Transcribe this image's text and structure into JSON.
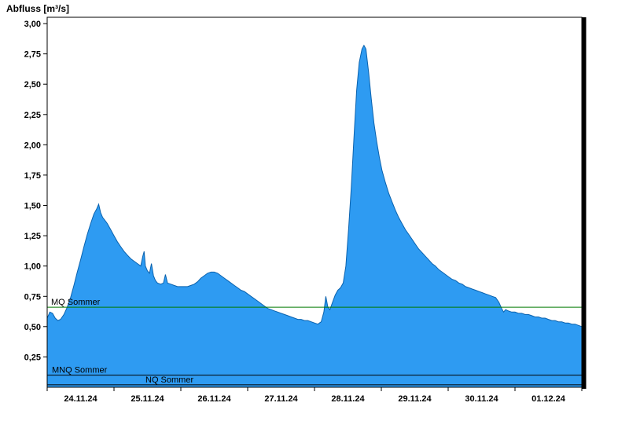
{
  "page": {
    "title": "Abfluss [m³/s]"
  },
  "colors": {
    "background": "#FFFFFF",
    "area_fill": "#2E9BF2",
    "area_stroke": "#0A62AE",
    "axis": "#000000",
    "text": "#000000",
    "mq_color": "#007A00",
    "ref_color": "#000000"
  },
  "chart_data": {
    "type": "area",
    "title": "Abfluss [m³/s]",
    "ylabel": "Abfluss [m³/s]",
    "ylim": [
      0,
      3.0
    ],
    "ytick_step": 0.25,
    "grid": false,
    "legend_position": "none",
    "x_axis": {
      "unit": "date",
      "days_shown": 8,
      "labels": [
        "24.11.24",
        "25.11.24",
        "26.11.24",
        "27.11.24",
        "28.11.24",
        "29.11.24",
        "30.11.24",
        "01.12.24"
      ]
    },
    "reference_lines": [
      {
        "label": "MQ Sommer",
        "value": 0.66,
        "color": "#007A00"
      },
      {
        "label": "MNQ Sommer",
        "value": 0.1,
        "color": "#000000"
      },
      {
        "label": "NQ Sommer",
        "value": 0.02,
        "color": "#000000"
      }
    ],
    "series": [
      {
        "name": "Abfluss",
        "points": [
          [
            0,
            0.57
          ],
          [
            0.04,
            0.62
          ],
          [
            0.08,
            0.61
          ],
          [
            0.12,
            0.57
          ],
          [
            0.16,
            0.55
          ],
          [
            0.2,
            0.56
          ],
          [
            0.25,
            0.6
          ],
          [
            0.3,
            0.66
          ],
          [
            0.35,
            0.74
          ],
          [
            0.4,
            0.84
          ],
          [
            0.45,
            0.95
          ],
          [
            0.5,
            1.05
          ],
          [
            0.55,
            1.16
          ],
          [
            0.6,
            1.26
          ],
          [
            0.65,
            1.35
          ],
          [
            0.7,
            1.43
          ],
          [
            0.74,
            1.47
          ],
          [
            0.77,
            1.51
          ],
          [
            0.8,
            1.44
          ],
          [
            0.83,
            1.4
          ],
          [
            0.86,
            1.38
          ],
          [
            0.9,
            1.35
          ],
          [
            0.95,
            1.3
          ],
          [
            1,
            1.25
          ],
          [
            1.05,
            1.2
          ],
          [
            1.1,
            1.16
          ],
          [
            1.15,
            1.12
          ],
          [
            1.2,
            1.09
          ],
          [
            1.25,
            1.06
          ],
          [
            1.3,
            1.04
          ],
          [
            1.35,
            1.02
          ],
          [
            1.4,
            1
          ],
          [
            1.43,
            1.08
          ],
          [
            1.45,
            1.12
          ],
          [
            1.47,
            1
          ],
          [
            1.5,
            0.96
          ],
          [
            1.53,
            0.94
          ],
          [
            1.56,
            1.02
          ],
          [
            1.59,
            0.92
          ],
          [
            1.62,
            0.88
          ],
          [
            1.65,
            0.86
          ],
          [
            1.7,
            0.85
          ],
          [
            1.74,
            0.86
          ],
          [
            1.77,
            0.93
          ],
          [
            1.8,
            0.86
          ],
          [
            1.85,
            0.85
          ],
          [
            1.9,
            0.84
          ],
          [
            1.95,
            0.83
          ],
          [
            2,
            0.83
          ],
          [
            2.1,
            0.83
          ],
          [
            2.15,
            0.84
          ],
          [
            2.2,
            0.85
          ],
          [
            2.25,
            0.87
          ],
          [
            2.3,
            0.9
          ],
          [
            2.35,
            0.92
          ],
          [
            2.4,
            0.94
          ],
          [
            2.45,
            0.95
          ],
          [
            2.5,
            0.95
          ],
          [
            2.55,
            0.94
          ],
          [
            2.6,
            0.92
          ],
          [
            2.65,
            0.9
          ],
          [
            2.7,
            0.88
          ],
          [
            2.75,
            0.86
          ],
          [
            2.8,
            0.84
          ],
          [
            2.85,
            0.82
          ],
          [
            2.9,
            0.8
          ],
          [
            2.95,
            0.79
          ],
          [
            3,
            0.77
          ],
          [
            3.05,
            0.75
          ],
          [
            3.1,
            0.73
          ],
          [
            3.15,
            0.71
          ],
          [
            3.2,
            0.69
          ],
          [
            3.25,
            0.67
          ],
          [
            3.3,
            0.65
          ],
          [
            3.35,
            0.64
          ],
          [
            3.4,
            0.63
          ],
          [
            3.45,
            0.62
          ],
          [
            3.5,
            0.61
          ],
          [
            3.55,
            0.6
          ],
          [
            3.6,
            0.59
          ],
          [
            3.65,
            0.58
          ],
          [
            3.7,
            0.57
          ],
          [
            3.75,
            0.56
          ],
          [
            3.8,
            0.56
          ],
          [
            3.85,
            0.55
          ],
          [
            3.9,
            0.55
          ],
          [
            3.95,
            0.54
          ],
          [
            4,
            0.53
          ],
          [
            4.05,
            0.52
          ],
          [
            4.1,
            0.54
          ],
          [
            4.14,
            0.62
          ],
          [
            4.17,
            0.75
          ],
          [
            4.2,
            0.66
          ],
          [
            4.23,
            0.64
          ],
          [
            4.27,
            0.7
          ],
          [
            4.31,
            0.76
          ],
          [
            4.35,
            0.8
          ],
          [
            4.39,
            0.82
          ],
          [
            4.43,
            0.86
          ],
          [
            4.47,
            1
          ],
          [
            4.51,
            1.3
          ],
          [
            4.55,
            1.65
          ],
          [
            4.59,
            2.05
          ],
          [
            4.63,
            2.45
          ],
          [
            4.67,
            2.68
          ],
          [
            4.71,
            2.79
          ],
          [
            4.74,
            2.82
          ],
          [
            4.77,
            2.79
          ],
          [
            4.81,
            2.6
          ],
          [
            4.85,
            2.38
          ],
          [
            4.89,
            2.18
          ],
          [
            4.93,
            2.03
          ],
          [
            4.97,
            1.9
          ],
          [
            5.01,
            1.79
          ],
          [
            5.06,
            1.69
          ],
          [
            5.11,
            1.6
          ],
          [
            5.16,
            1.53
          ],
          [
            5.21,
            1.46
          ],
          [
            5.26,
            1.4
          ],
          [
            5.31,
            1.35
          ],
          [
            5.36,
            1.3
          ],
          [
            5.41,
            1.26
          ],
          [
            5.46,
            1.22
          ],
          [
            5.51,
            1.18
          ],
          [
            5.56,
            1.14
          ],
          [
            5.61,
            1.11
          ],
          [
            5.66,
            1.08
          ],
          [
            5.71,
            1.05
          ],
          [
            5.76,
            1.02
          ],
          [
            5.81,
            1
          ],
          [
            5.86,
            0.97
          ],
          [
            5.91,
            0.95
          ],
          [
            5.96,
            0.93
          ],
          [
            6.01,
            0.91
          ],
          [
            6.06,
            0.89
          ],
          [
            6.11,
            0.88
          ],
          [
            6.16,
            0.86
          ],
          [
            6.21,
            0.85
          ],
          [
            6.26,
            0.83
          ],
          [
            6.31,
            0.82
          ],
          [
            6.36,
            0.81
          ],
          [
            6.41,
            0.8
          ],
          [
            6.46,
            0.79
          ],
          [
            6.51,
            0.78
          ],
          [
            6.56,
            0.77
          ],
          [
            6.61,
            0.76
          ],
          [
            6.66,
            0.75
          ],
          [
            6.71,
            0.74
          ],
          [
            6.76,
            0.7
          ],
          [
            6.8,
            0.65
          ],
          [
            6.83,
            0.62
          ],
          [
            6.86,
            0.64
          ],
          [
            6.9,
            0.63
          ],
          [
            6.95,
            0.62
          ],
          [
            7,
            0.62
          ],
          [
            7.05,
            0.61
          ],
          [
            7.1,
            0.61
          ],
          [
            7.15,
            0.6
          ],
          [
            7.2,
            0.6
          ],
          [
            7.25,
            0.59
          ],
          [
            7.3,
            0.58
          ],
          [
            7.35,
            0.58
          ],
          [
            7.4,
            0.57
          ],
          [
            7.45,
            0.57
          ],
          [
            7.5,
            0.56
          ],
          [
            7.55,
            0.55
          ],
          [
            7.6,
            0.55
          ],
          [
            7.65,
            0.54
          ],
          [
            7.7,
            0.54
          ],
          [
            7.75,
            0.53
          ],
          [
            7.8,
            0.53
          ],
          [
            7.85,
            0.52
          ],
          [
            7.9,
            0.52
          ],
          [
            7.95,
            0.51
          ],
          [
            8,
            0.5
          ]
        ]
      }
    ]
  }
}
